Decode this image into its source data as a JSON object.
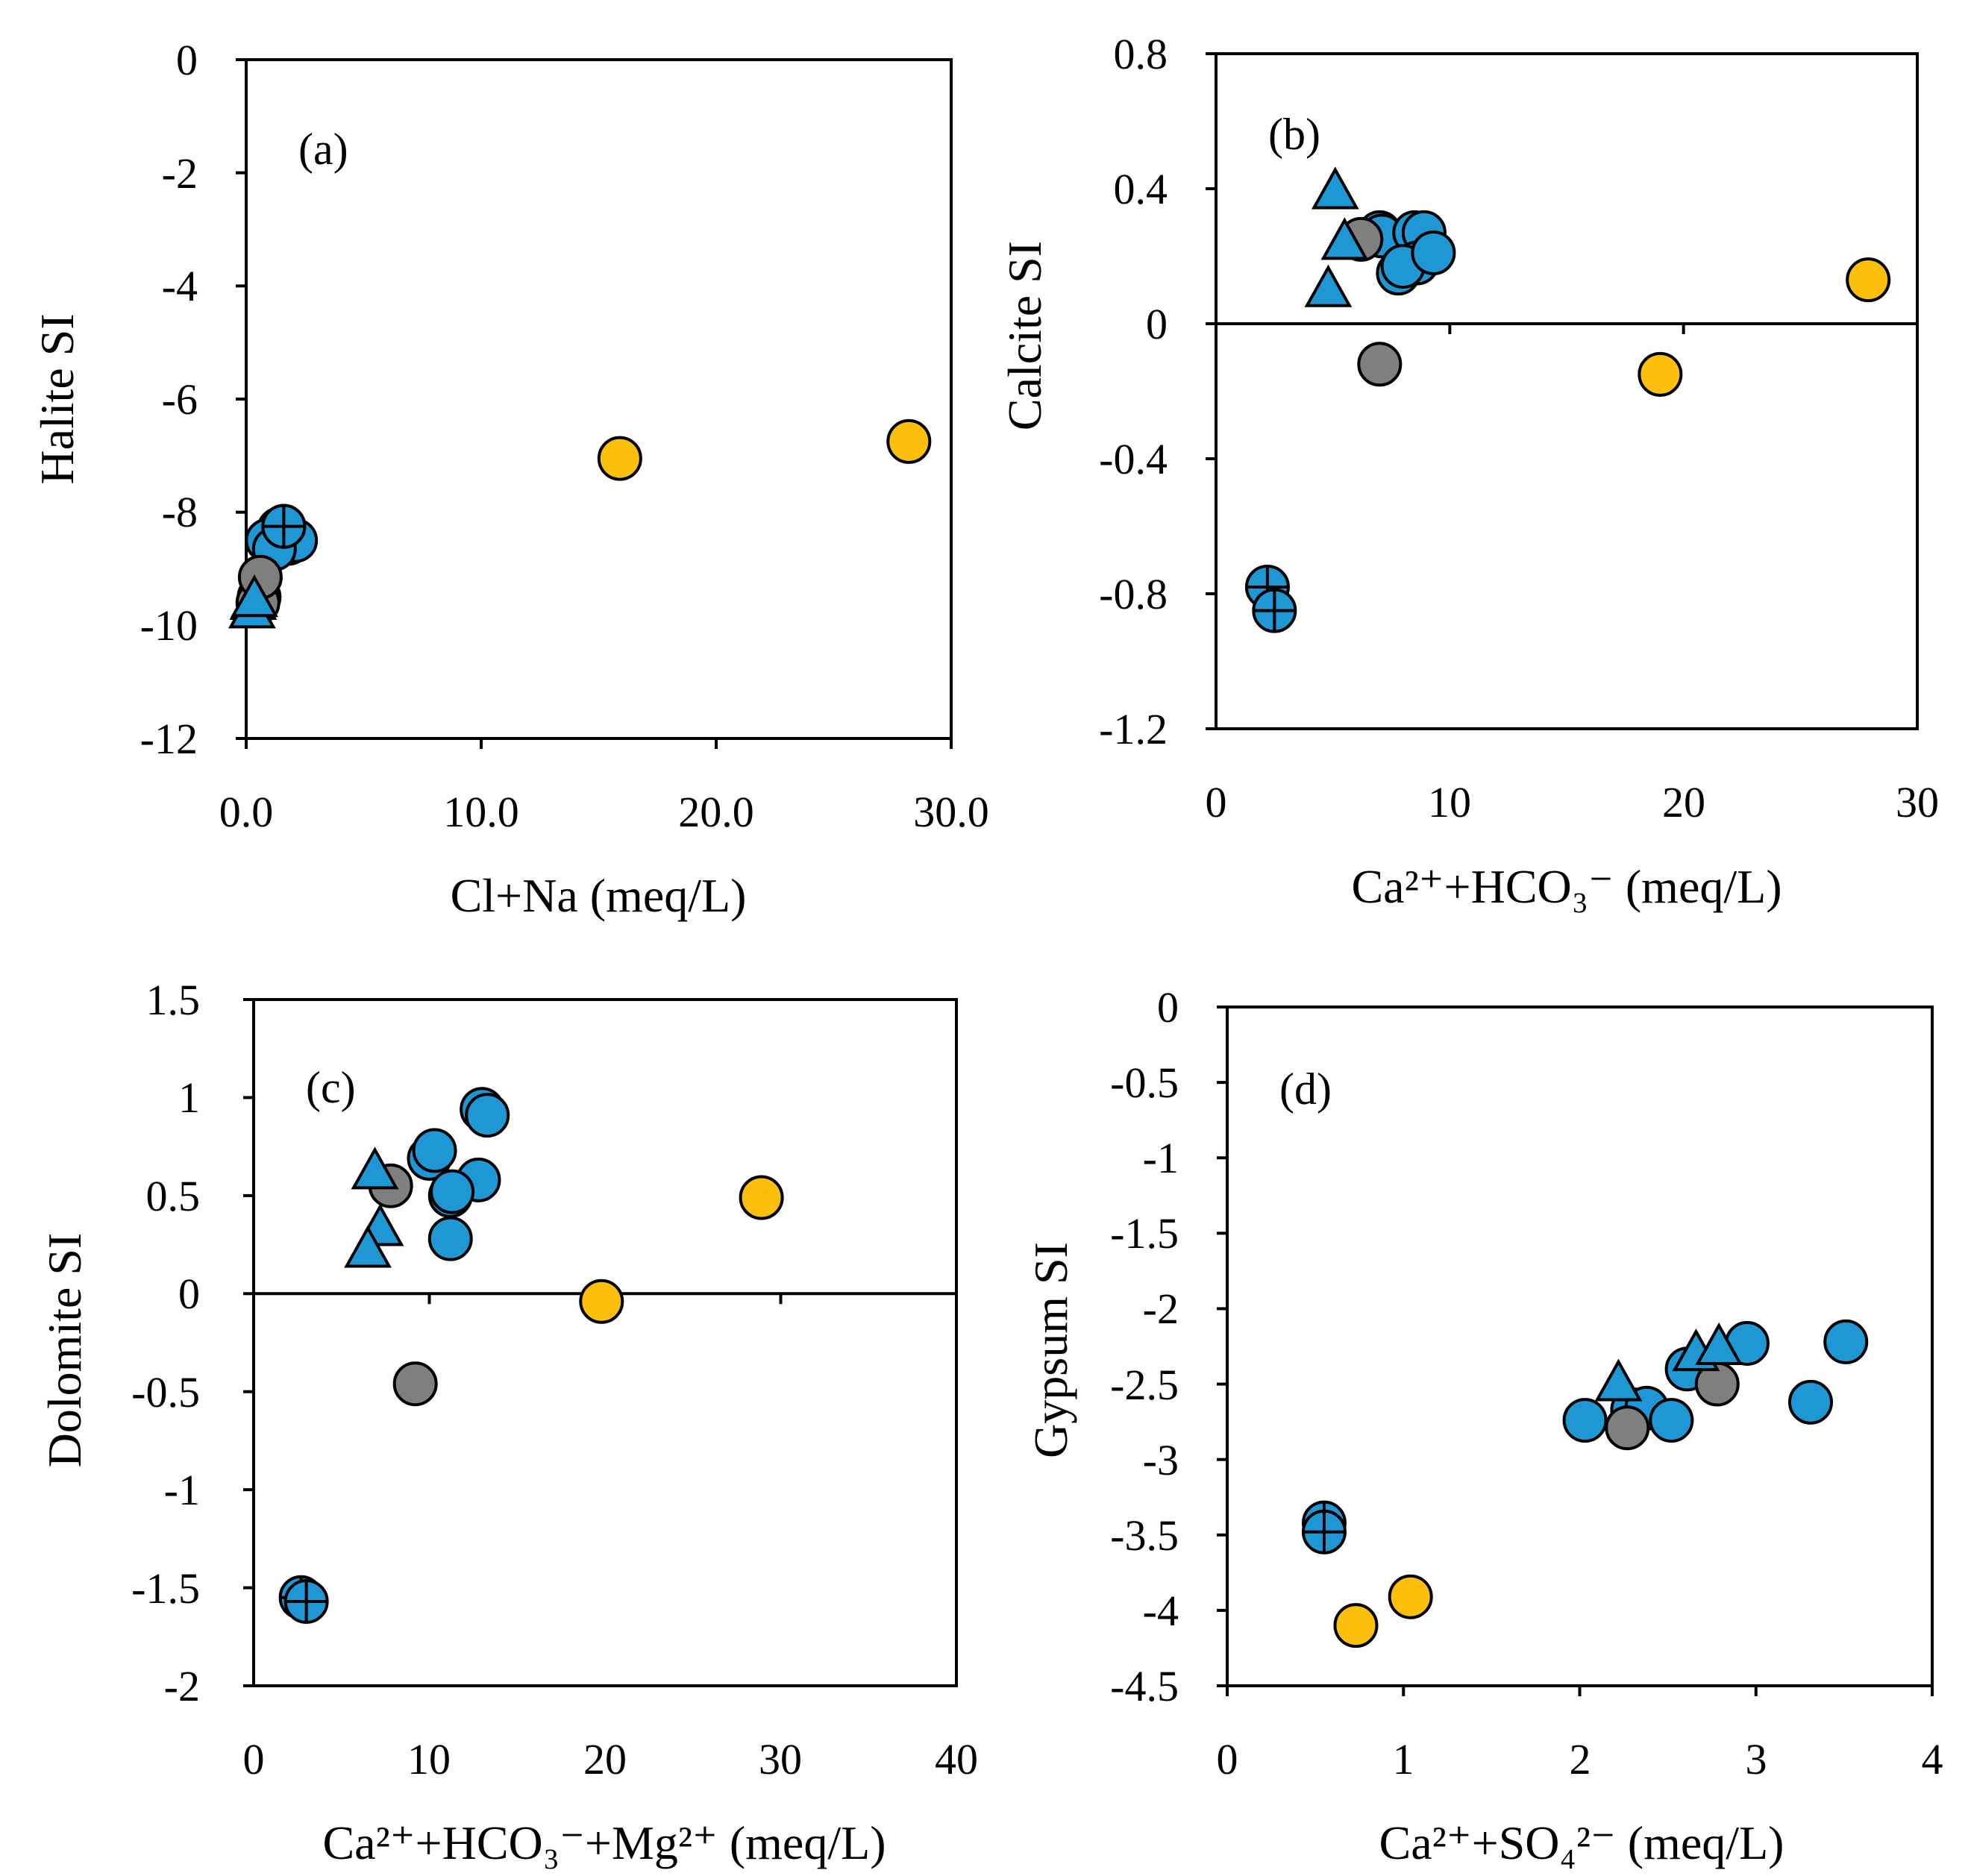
{
  "colors": {
    "blue": "#1f97d4",
    "gray": "#7f7f7f",
    "yellow": "#fbbf0c",
    "axis": "#000000"
  },
  "chart_data": [
    {
      "id": "a",
      "type": "scatter",
      "panel_label": "(a)",
      "xlabel": "Cl+Na (meq/L)",
      "ylabel": "Halite SI",
      "xlim": [
        0,
        30
      ],
      "ylim": [
        -12,
        0
      ],
      "xticks": [
        0,
        10,
        20,
        30
      ],
      "xtick_labels": [
        "0.0",
        "10.0",
        "20.0",
        "30.0"
      ],
      "yticks": [
        0,
        -2,
        -4,
        -6,
        -8,
        -10,
        -12
      ],
      "ytick_labels": [
        "0",
        "-2",
        "-4",
        "-6",
        "-8",
        "-10",
        "-12"
      ],
      "zero_line": false,
      "points": [
        {
          "x": 1.4,
          "y": -8.3,
          "series": "blue_circle"
        },
        {
          "x": 1.8,
          "y": -8.55,
          "series": "blue_circle"
        },
        {
          "x": 2.1,
          "y": -8.5,
          "series": "blue_circle"
        },
        {
          "x": 0.9,
          "y": -8.5,
          "series": "blue_circle"
        },
        {
          "x": 1.2,
          "y": -8.65,
          "series": "blue_circle"
        },
        {
          "x": 1.6,
          "y": -8.25,
          "series": "blue_crossed"
        },
        {
          "x": 1.6,
          "y": -8.25,
          "series": "blue_crossed"
        },
        {
          "x": 0.55,
          "y": -9.5,
          "series": "gray"
        },
        {
          "x": 0.5,
          "y": -9.6,
          "series": "gray"
        },
        {
          "x": 0.6,
          "y": -9.15,
          "series": "gray"
        },
        {
          "x": 0.3,
          "y": -9.6,
          "series": "blue_triangle"
        },
        {
          "x": 0.25,
          "y": -9.75,
          "series": "blue_triangle"
        },
        {
          "x": 0.35,
          "y": -9.55,
          "series": "blue_triangle"
        },
        {
          "x": 15.9,
          "y": -7.05,
          "series": "yellow"
        },
        {
          "x": 28.2,
          "y": -6.75,
          "series": "yellow"
        }
      ]
    },
    {
      "id": "b",
      "type": "scatter",
      "panel_label": "(b)",
      "xlabel": "Ca²⁺+HCO₃⁻ (meq/L)",
      "ylabel": "Calcite SI",
      "xlim": [
        0,
        30
      ],
      "ylim": [
        -1.2,
        0.8
      ],
      "xticks": [
        0,
        10,
        20,
        30
      ],
      "xtick_labels": [
        "0",
        "10",
        "20",
        "30"
      ],
      "yticks": [
        0.8,
        0.4,
        0,
        -0.4,
        -0.8,
        -1.2
      ],
      "ytick_labels": [
        "0.8",
        "0.4",
        "0",
        "-0.4",
        "-0.8",
        "-1.2"
      ],
      "zero_line": true,
      "points": [
        {
          "x": 7.0,
          "y": 0.27,
          "series": "blue_circle"
        },
        {
          "x": 7.1,
          "y": 0.26,
          "series": "blue_circle"
        },
        {
          "x": 8.5,
          "y": 0.27,
          "series": "blue_circle"
        },
        {
          "x": 8.9,
          "y": 0.27,
          "series": "blue_circle"
        },
        {
          "x": 8.6,
          "y": 0.18,
          "series": "blue_circle"
        },
        {
          "x": 7.8,
          "y": 0.15,
          "series": "blue_circle"
        },
        {
          "x": 8.0,
          "y": 0.17,
          "series": "blue_circle"
        },
        {
          "x": 9.3,
          "y": 0.21,
          "series": "blue_circle"
        },
        {
          "x": 6.2,
          "y": 0.25,
          "series": "gray"
        },
        {
          "x": 7.0,
          "y": -0.12,
          "series": "gray"
        },
        {
          "x": 5.1,
          "y": 0.39,
          "series": "blue_triangle"
        },
        {
          "x": 5.5,
          "y": 0.24,
          "series": "blue_triangle"
        },
        {
          "x": 4.8,
          "y": 0.1,
          "series": "blue_triangle"
        },
        {
          "x": 2.2,
          "y": -0.78,
          "series": "blue_crossed"
        },
        {
          "x": 2.5,
          "y": -0.85,
          "series": "blue_crossed"
        },
        {
          "x": 19.0,
          "y": -0.15,
          "series": "yellow"
        },
        {
          "x": 27.9,
          "y": 0.13,
          "series": "yellow"
        }
      ]
    },
    {
      "id": "c",
      "type": "scatter",
      "panel_label": "(c)",
      "xlabel": "Ca²⁺+HCO₃⁻+Mg²⁺ (meq/L)",
      "ylabel": "Dolomite SI",
      "xlim": [
        0,
        40
      ],
      "ylim": [
        -2,
        1.5
      ],
      "xticks": [
        0,
        10,
        20,
        30,
        40
      ],
      "xtick_labels": [
        "0",
        "10",
        "20",
        "30",
        "40"
      ],
      "yticks": [
        1.5,
        1,
        0.5,
        0,
        -0.5,
        -1,
        -1.5,
        -2
      ],
      "ytick_labels": [
        "1.5",
        "1",
        "0.5",
        "0",
        "-0.5",
        "-1",
        "-1.5",
        "-2"
      ],
      "zero_line": true,
      "points": [
        {
          "x": 13.0,
          "y": 0.94,
          "series": "blue_circle"
        },
        {
          "x": 13.3,
          "y": 0.91,
          "series": "blue_circle"
        },
        {
          "x": 10.0,
          "y": 0.69,
          "series": "blue_circle"
        },
        {
          "x": 10.3,
          "y": 0.73,
          "series": "blue_circle"
        },
        {
          "x": 12.8,
          "y": 0.58,
          "series": "blue_circle"
        },
        {
          "x": 11.2,
          "y": 0.5,
          "series": "blue_circle"
        },
        {
          "x": 11.3,
          "y": 0.52,
          "series": "blue_circle"
        },
        {
          "x": 11.2,
          "y": 0.28,
          "series": "blue_circle"
        },
        {
          "x": 7.8,
          "y": 0.55,
          "series": "gray"
        },
        {
          "x": 9.2,
          "y": -0.46,
          "series": "gray"
        },
        {
          "x": 6.9,
          "y": 0.62,
          "series": "blue_triangle"
        },
        {
          "x": 7.2,
          "y": 0.33,
          "series": "blue_triangle"
        },
        {
          "x": 6.5,
          "y": 0.22,
          "series": "blue_triangle"
        },
        {
          "x": 2.7,
          "y": -1.55,
          "series": "blue_crossed"
        },
        {
          "x": 3.0,
          "y": -1.57,
          "series": "blue_crossed"
        },
        {
          "x": 19.8,
          "y": -0.04,
          "series": "yellow"
        },
        {
          "x": 28.9,
          "y": 0.49,
          "series": "yellow"
        }
      ]
    },
    {
      "id": "d",
      "type": "scatter",
      "panel_label": "(d)",
      "xlabel": "Ca²⁺+SO₄²⁻ (meq/L)",
      "ylabel": "Gypsum SI",
      "xlim": [
        0,
        4
      ],
      "ylim": [
        -4.5,
        0
      ],
      "xticks": [
        0,
        1,
        2,
        3,
        4
      ],
      "xtick_labels": [
        "0",
        "1",
        "2",
        "3",
        "4"
      ],
      "yticks": [
        0,
        -0.5,
        -1,
        -1.5,
        -2,
        -2.5,
        -3,
        -3.5,
        -4,
        -4.5
      ],
      "ytick_labels": [
        "0",
        "-0.5",
        "-1",
        "-1.5",
        "-2",
        "-2.5",
        "-3",
        "-3.5",
        "-4",
        "-4.5"
      ],
      "zero_line": false,
      "points": [
        {
          "x": 2.03,
          "y": -2.74,
          "series": "blue_circle"
        },
        {
          "x": 2.3,
          "y": -2.67,
          "series": "blue_circle"
        },
        {
          "x": 2.38,
          "y": -2.66,
          "series": "blue_circle"
        },
        {
          "x": 2.52,
          "y": -2.74,
          "series": "blue_circle"
        },
        {
          "x": 2.61,
          "y": -2.4,
          "series": "blue_circle"
        },
        {
          "x": 2.95,
          "y": -2.23,
          "series": "blue_circle"
        },
        {
          "x": 3.31,
          "y": -2.62,
          "series": "blue_circle"
        },
        {
          "x": 3.51,
          "y": -2.22,
          "series": "blue_circle"
        },
        {
          "x": 2.27,
          "y": -2.79,
          "series": "gray"
        },
        {
          "x": 2.78,
          "y": -2.5,
          "series": "gray"
        },
        {
          "x": 2.22,
          "y": -2.5,
          "series": "blue_triangle"
        },
        {
          "x": 2.66,
          "y": -2.3,
          "series": "blue_triangle"
        },
        {
          "x": 2.79,
          "y": -2.26,
          "series": "blue_triangle"
        },
        {
          "x": 0.55,
          "y": -3.42,
          "series": "blue_crossed"
        },
        {
          "x": 0.55,
          "y": -3.48,
          "series": "blue_crossed"
        },
        {
          "x": 0.73,
          "y": -4.1,
          "series": "yellow"
        },
        {
          "x": 1.04,
          "y": -3.91,
          "series": "yellow"
        }
      ]
    }
  ]
}
